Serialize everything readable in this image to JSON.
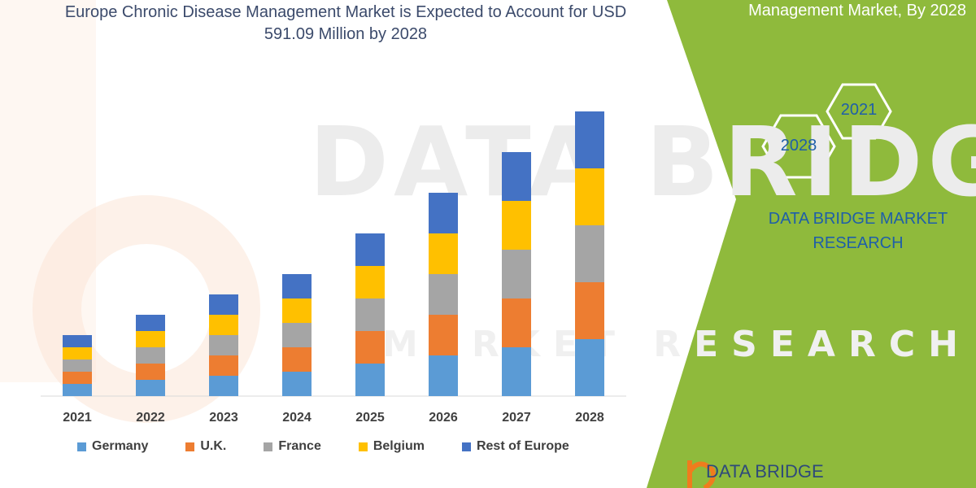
{
  "header": {
    "title": "Europe Chronic Disease Management Market is Expected to Account for USD 591.09 Million by 2028",
    "right_title": "Management Market, By 2028"
  },
  "brand": {
    "name_line1": "DATA BRIDGE MARKET",
    "name_line2": "RESEARCH",
    "logo_text": "DATA BRIDGE",
    "watermark_top": "DATA BRIDGE",
    "watermark_bottom": "MARKET RESEARCH",
    "hex_top": "2021",
    "hex_bottom": "2028"
  },
  "colors": {
    "panel_green": "#8fba3c",
    "title_text": "#3b4a6b",
    "brand_text": "#1f5fa8",
    "hex_stroke": "#ffffff",
    "logo_orange": "#f07c1d"
  },
  "chart_data": {
    "type": "bar",
    "stacked": true,
    "categories": [
      "2021",
      "2022",
      "2023",
      "2024",
      "2025",
      "2026",
      "2027",
      "2028"
    ],
    "series": [
      {
        "name": "Germany",
        "color": "#5b9bd5",
        "values": [
          3.0,
          4.0,
          5.0,
          6.0,
          8.0,
          10.0,
          12.0,
          14.0
        ]
      },
      {
        "name": "U.K.",
        "color": "#ed7d31",
        "values": [
          3.0,
          4.0,
          5.0,
          6.0,
          8.0,
          10.0,
          12.0,
          14.0
        ]
      },
      {
        "name": "France",
        "color": "#a5a5a5",
        "values": [
          3.0,
          4.0,
          5.0,
          6.0,
          8.0,
          10.0,
          12.0,
          14.0
        ]
      },
      {
        "name": "Belgium",
        "color": "#ffc000",
        "values": [
          3.0,
          4.0,
          5.0,
          6.0,
          8.0,
          10.0,
          12.0,
          14.0
        ]
      },
      {
        "name": "Rest of Europe",
        "color": "#4472c4",
        "values": [
          3.0,
          4.0,
          5.0,
          6.0,
          8.0,
          10.0,
          12.0,
          14.0
        ]
      }
    ],
    "ylim": [
      0,
      75
    ],
    "grid": false,
    "legend_position": "bottom",
    "xlabel": "",
    "ylabel": ""
  }
}
